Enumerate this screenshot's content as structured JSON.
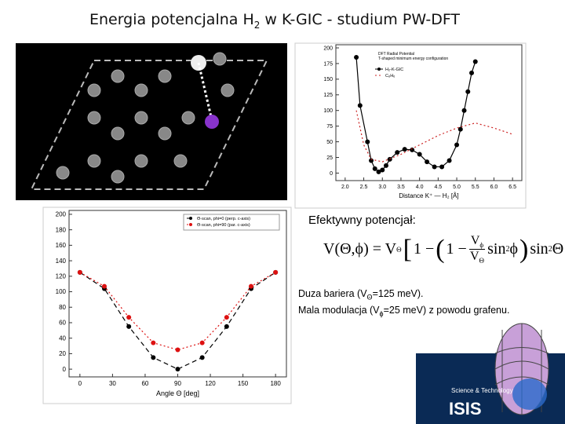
{
  "slide": {
    "title_a": "Energia potencjalna H",
    "title_sub": "2",
    "title_b": " w K-GIC - studium PW-DFT",
    "heading": "Efektywny potencjał:",
    "formula": {
      "lhs": "V(Θ,ϕ) = V",
      "lhs_sub": "Θ",
      "open": "[",
      "one": "1 −",
      "paren_open": "(",
      "one_b": "1 −",
      "num": "V",
      "num_sub": "ϕ",
      "den": "V",
      "den_sub": "Θ",
      "sin_phi": "sin",
      "sq": "2",
      "phi": " ϕ",
      "paren_close": ")",
      "sin_theta": "sin",
      "sq2": "2",
      "theta": " Θ",
      "close": "]"
    },
    "note1_a": "Duza bariera (V",
    "note1_sub": "Θ",
    "note1_b": "=125 meV).",
    "note2_a": "Mala modulacja (V",
    "note2_sub": "ϕ",
    "note2_b": "=25 meV) z powodu grafenu.",
    "logo": "ISIS",
    "logo_sub": "Science & Technology"
  },
  "chart_data": [
    {
      "type": "line",
      "xlabel": "Distance K⁺ — H₂ [Å]",
      "legend_title": "DFT Radial Potential",
      "legend_subtitle": "T-shaped minimum energy configuration",
      "xlim": [
        1.75,
        6.75
      ],
      "ylim": [
        -12,
        205
      ],
      "xticks": [
        {
          "value": 2.0,
          "label": "2.0"
        },
        {
          "value": 2.5,
          "label": "2.5"
        },
        {
          "value": 3.0,
          "label": "3.0"
        },
        {
          "value": 3.5,
          "label": "3.5"
        },
        {
          "value": 4.0,
          "label": "4.0"
        },
        {
          "value": 4.5,
          "label": "4.5"
        },
        {
          "value": 5.0,
          "label": "5.0"
        },
        {
          "value": 5.5,
          "label": "5.5"
        },
        {
          "value": 6.0,
          "label": "6.0"
        },
        {
          "value": 6.5,
          "label": "6.5"
        }
      ],
      "yticks": [
        0,
        25,
        50,
        75,
        100,
        125,
        150,
        175,
        200
      ],
      "series": [
        {
          "name": "H₂-K-GIC",
          "color": "#000000",
          "markers": true,
          "dash": "solid",
          "x": [
            2.3,
            2.4,
            2.6,
            2.7,
            2.8,
            2.9,
            3.0,
            3.1,
            3.2,
            3.4,
            3.6,
            3.8,
            4.0,
            4.2,
            4.4,
            4.6,
            4.8,
            5.0,
            5.1,
            5.2,
            5.3,
            5.4,
            5.5
          ],
          "values": [
            185,
            108,
            50,
            20,
            7,
            2,
            5,
            12,
            22,
            33,
            38,
            37,
            30,
            18,
            10,
            10,
            20,
            45,
            70,
            100,
            130,
            160,
            178
          ]
        },
        {
          "name": "C₆H₆",
          "color": "#cc2222",
          "markers": false,
          "dash": "dotted",
          "x": [
            2.3,
            2.5,
            2.7,
            3.0,
            3.5,
            4.0,
            4.5,
            5.0,
            5.5,
            6.0,
            6.5
          ],
          "values": [
            100,
            45,
            22,
            18,
            30,
            45,
            60,
            72,
            80,
            72,
            62
          ]
        }
      ]
    },
    {
      "type": "line",
      "xlabel": "Angle Θ [deg]",
      "xlim": [
        -10,
        190
      ],
      "ylim": [
        -10,
        205
      ],
      "xticks": [
        0,
        30,
        60,
        90,
        120,
        150,
        180
      ],
      "yticks": [
        0,
        20,
        40,
        60,
        80,
        100,
        120,
        140,
        160,
        180,
        200
      ],
      "series": [
        {
          "name": "Θ-scan, phi=0 (perp. c-axis)",
          "color": "#000000",
          "markers": true,
          "dash": "dashed",
          "x": [
            0,
            22.5,
            45,
            67.5,
            90,
            112.5,
            135,
            157.5,
            180
          ],
          "values": [
            125,
            104,
            55,
            15,
            0,
            15,
            55,
            104,
            125
          ]
        },
        {
          "name": "Θ-scan, phi=90 (par. c-axis)",
          "color": "#dd1111",
          "markers": true,
          "dash": "dotted",
          "x": [
            0,
            22.5,
            45,
            67.5,
            90,
            112.5,
            135,
            157.5,
            180
          ],
          "values": [
            125,
            107,
            67,
            34,
            25,
            34,
            67,
            107,
            125
          ]
        }
      ]
    }
  ]
}
